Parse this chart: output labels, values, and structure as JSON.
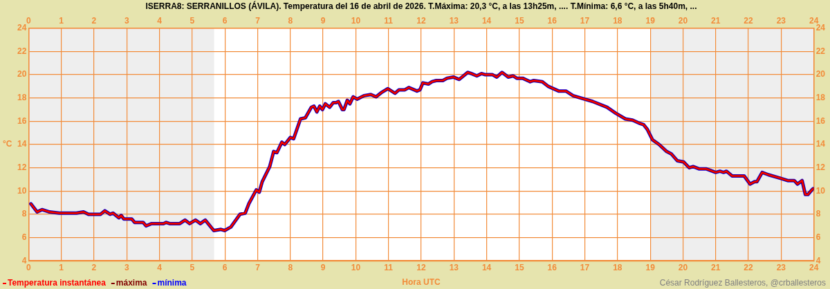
{
  "chart_data": {
    "type": "line",
    "title": "ISERRA8: SERRANILLOS (ÁVILA). Temperatura del 16 de abril de 2026. T.Máxima: 20,3 °C, a las 13h25m, .... T.Mínima: 6,6 °C, a las 5h40m, ...",
    "xlabel": "Hora UTC",
    "ylabel": "°C",
    "x": [
      0.07,
      0.26,
      0.41,
      0.64,
      0.94,
      1.46,
      1.68,
      1.83,
      2.2,
      2.33,
      2.49,
      2.58,
      2.76,
      2.83,
      2.91,
      3.15,
      3.24,
      3.5,
      3.59,
      3.76,
      4.13,
      4.2,
      4.31,
      4.62,
      4.78,
      4.92,
      5.1,
      5.25,
      5.4,
      5.66,
      5.88,
      5.99,
      6.18,
      6.46,
      6.62,
      6.73,
      6.96,
      7.05,
      7.14,
      7.37,
      7.49,
      7.59,
      7.74,
      7.83,
      8.0,
      8.1,
      8.31,
      8.46,
      8.64,
      8.72,
      8.81,
      8.9,
      8.98,
      9.07,
      9.2,
      9.31,
      9.4,
      9.47,
      9.59,
      9.64,
      9.74,
      9.82,
      9.92,
      10.04,
      10.25,
      10.46,
      10.62,
      10.8,
      10.98,
      11.2,
      11.32,
      11.5,
      11.62,
      11.87,
      11.96,
      12.05,
      12.22,
      12.33,
      12.46,
      12.66,
      12.79,
      12.98,
      13.16,
      13.42,
      13.53,
      13.7,
      13.84,
      13.96,
      14.18,
      14.31,
      14.47,
      14.66,
      14.81,
      14.92,
      15.1,
      15.33,
      15.44,
      15.7,
      15.88,
      16.2,
      16.42,
      16.64,
      16.87,
      17.24,
      17.68,
      17.94,
      18.24,
      18.46,
      18.69,
      18.8,
      18.91,
      19.07,
      19.27,
      19.5,
      19.64,
      19.83,
      20.02,
      20.19,
      20.31,
      20.5,
      20.72,
      21.0,
      21.13,
      21.24,
      21.33,
      21.5,
      21.87,
      22.05,
      22.19,
      22.26,
      22.42,
      22.61,
      22.98,
      23.2,
      23.35,
      23.4,
      23.5,
      23.64,
      23.74,
      23.82,
      23.94,
      23.98
    ],
    "series": [
      {
        "name": "Temperatura instantánea",
        "color": "#ff0000",
        "values": [
          8.9,
          8.2,
          8.4,
          8.2,
          8.1,
          8.1,
          8.2,
          8.0,
          8.0,
          8.3,
          8.0,
          8.1,
          7.7,
          7.9,
          7.6,
          7.6,
          7.3,
          7.3,
          7.0,
          7.2,
          7.2,
          7.3,
          7.2,
          7.2,
          7.5,
          7.2,
          7.5,
          7.2,
          7.5,
          6.6,
          6.7,
          6.6,
          6.9,
          8.0,
          8.1,
          8.9,
          10.1,
          9.9,
          10.8,
          12.1,
          13.4,
          13.3,
          14.2,
          14.0,
          14.6,
          14.5,
          16.2,
          16.3,
          17.2,
          17.3,
          16.8,
          17.3,
          17.0,
          17.5,
          17.2,
          17.6,
          17.6,
          17.7,
          17.0,
          17.0,
          17.8,
          17.5,
          18.1,
          17.9,
          18.2,
          18.3,
          18.1,
          18.5,
          18.8,
          18.4,
          18.7,
          18.7,
          18.9,
          18.6,
          18.7,
          19.3,
          19.2,
          19.4,
          19.5,
          19.5,
          19.7,
          19.8,
          19.6,
          20.2,
          20.1,
          19.9,
          20.1,
          20.0,
          20.0,
          19.8,
          20.2,
          19.8,
          19.9,
          19.7,
          19.7,
          19.4,
          19.5,
          19.4,
          19.0,
          18.6,
          18.6,
          18.2,
          18.0,
          17.7,
          17.2,
          16.7,
          16.2,
          16.1,
          15.8,
          15.7,
          15.3,
          14.4,
          14.0,
          13.4,
          13.2,
          12.6,
          12.5,
          12.0,
          12.1,
          11.9,
          11.9,
          11.6,
          11.7,
          11.6,
          11.7,
          11.3,
          11.3,
          10.6,
          10.8,
          10.8,
          11.6,
          11.4,
          11.1,
          10.9,
          10.9,
          10.9,
          10.6,
          10.9,
          9.7,
          9.7,
          10.1,
          10.2
        ]
      },
      {
        "name": "máxima",
        "color": "#800000",
        "values": [
          8.9,
          8.2,
          8.4,
          8.2,
          8.1,
          8.1,
          8.2,
          8.0,
          8.0,
          8.3,
          8.0,
          8.1,
          7.7,
          7.9,
          7.6,
          7.6,
          7.3,
          7.3,
          7.0,
          7.2,
          7.2,
          7.3,
          7.2,
          7.2,
          7.5,
          7.2,
          7.5,
          7.2,
          7.5,
          6.6,
          6.7,
          6.6,
          6.9,
          8.0,
          8.1,
          8.9,
          10.1,
          9.9,
          10.8,
          12.1,
          13.4,
          13.3,
          14.2,
          14.0,
          14.6,
          14.5,
          16.2,
          16.3,
          17.2,
          17.3,
          16.8,
          17.3,
          17.0,
          17.5,
          17.2,
          17.6,
          17.6,
          17.7,
          17.0,
          17.0,
          17.8,
          17.5,
          18.1,
          17.9,
          18.2,
          18.3,
          18.1,
          18.5,
          18.8,
          18.4,
          18.7,
          18.7,
          18.9,
          18.6,
          18.7,
          19.3,
          19.2,
          19.4,
          19.5,
          19.5,
          19.7,
          19.8,
          19.6,
          20.2,
          20.1,
          19.9,
          20.1,
          20.0,
          20.0,
          19.8,
          20.2,
          19.8,
          19.9,
          19.7,
          19.7,
          19.4,
          19.5,
          19.4,
          19.0,
          18.6,
          18.6,
          18.2,
          18.0,
          17.7,
          17.2,
          16.7,
          16.2,
          16.1,
          15.8,
          15.7,
          15.3,
          14.4,
          14.0,
          13.4,
          13.2,
          12.6,
          12.5,
          12.0,
          12.1,
          11.9,
          11.9,
          11.6,
          11.7,
          11.6,
          11.7,
          11.3,
          11.3,
          10.6,
          10.8,
          10.8,
          11.6,
          11.4,
          11.1,
          10.9,
          10.9,
          10.9,
          10.6,
          10.9,
          9.7,
          9.7,
          10.1,
          10.2
        ]
      },
      {
        "name": "mínima",
        "color": "#0000ff",
        "values": [
          8.9,
          8.2,
          8.4,
          8.2,
          8.1,
          8.1,
          8.2,
          8.0,
          8.0,
          8.3,
          8.0,
          8.1,
          7.7,
          7.9,
          7.6,
          7.6,
          7.3,
          7.3,
          7.0,
          7.2,
          7.2,
          7.3,
          7.2,
          7.2,
          7.5,
          7.2,
          7.5,
          7.2,
          7.5,
          6.6,
          6.7,
          6.6,
          6.9,
          8.0,
          8.1,
          8.9,
          10.1,
          9.9,
          10.8,
          12.1,
          13.4,
          13.3,
          14.2,
          14.0,
          14.6,
          14.5,
          16.2,
          16.3,
          17.2,
          17.3,
          16.8,
          17.3,
          17.0,
          17.5,
          17.2,
          17.6,
          17.6,
          17.7,
          17.0,
          17.0,
          17.8,
          17.5,
          18.1,
          17.9,
          18.2,
          18.3,
          18.1,
          18.5,
          18.8,
          18.4,
          18.7,
          18.7,
          18.9,
          18.6,
          18.7,
          19.3,
          19.2,
          19.4,
          19.5,
          19.5,
          19.7,
          19.8,
          19.6,
          20.2,
          20.1,
          19.9,
          20.1,
          20.0,
          20.0,
          19.8,
          20.2,
          19.8,
          19.9,
          19.7,
          19.7,
          19.4,
          19.5,
          19.4,
          19.0,
          18.6,
          18.6,
          18.2,
          18.0,
          17.7,
          17.2,
          16.7,
          16.2,
          16.1,
          15.8,
          15.7,
          15.3,
          14.4,
          14.0,
          13.4,
          13.2,
          12.6,
          12.5,
          12.0,
          12.1,
          11.9,
          11.9,
          11.6,
          11.7,
          11.6,
          11.7,
          11.3,
          11.3,
          10.6,
          10.8,
          10.8,
          11.6,
          11.4,
          11.1,
          10.9,
          10.9,
          10.9,
          10.6,
          10.9,
          9.7,
          9.7,
          10.1,
          10.2
        ]
      }
    ],
    "xlim": [
      0,
      24
    ],
    "xticks": [
      0,
      1,
      2,
      3,
      4,
      5,
      6,
      7,
      8,
      9,
      10,
      11,
      12,
      13,
      14,
      15,
      16,
      17,
      18,
      19,
      20,
      21,
      22,
      23,
      24
    ],
    "x2lim": [
      0,
      24
    ],
    "x2ticks": [
      0,
      1,
      2,
      3,
      4,
      5,
      6,
      7,
      8,
      9,
      10,
      11,
      12,
      13,
      14,
      15,
      16,
      17,
      18,
      19,
      20,
      21,
      22,
      23,
      24
    ],
    "ylim": [
      4,
      24
    ],
    "yticks": [
      4,
      6,
      8,
      10,
      12,
      14,
      16,
      18,
      20,
      22,
      24
    ],
    "y2lim": [
      4,
      24
    ],
    "y2ticks": [
      4,
      6,
      8,
      10,
      12,
      14,
      16,
      18,
      20,
      22,
      24
    ],
    "bands": [
      {
        "axis": "x",
        "from": 0,
        "to": 5.67,
        "color": "#eeeeee"
      },
      {
        "axis": "x",
        "from": 19,
        "to": 24,
        "color": "#eeeeee"
      }
    ],
    "grid": true,
    "legend": "bottom left",
    "marker": "none",
    "annotations": [
      "César Rodríguez Ballesteros, @crballesteros"
    ]
  }
}
